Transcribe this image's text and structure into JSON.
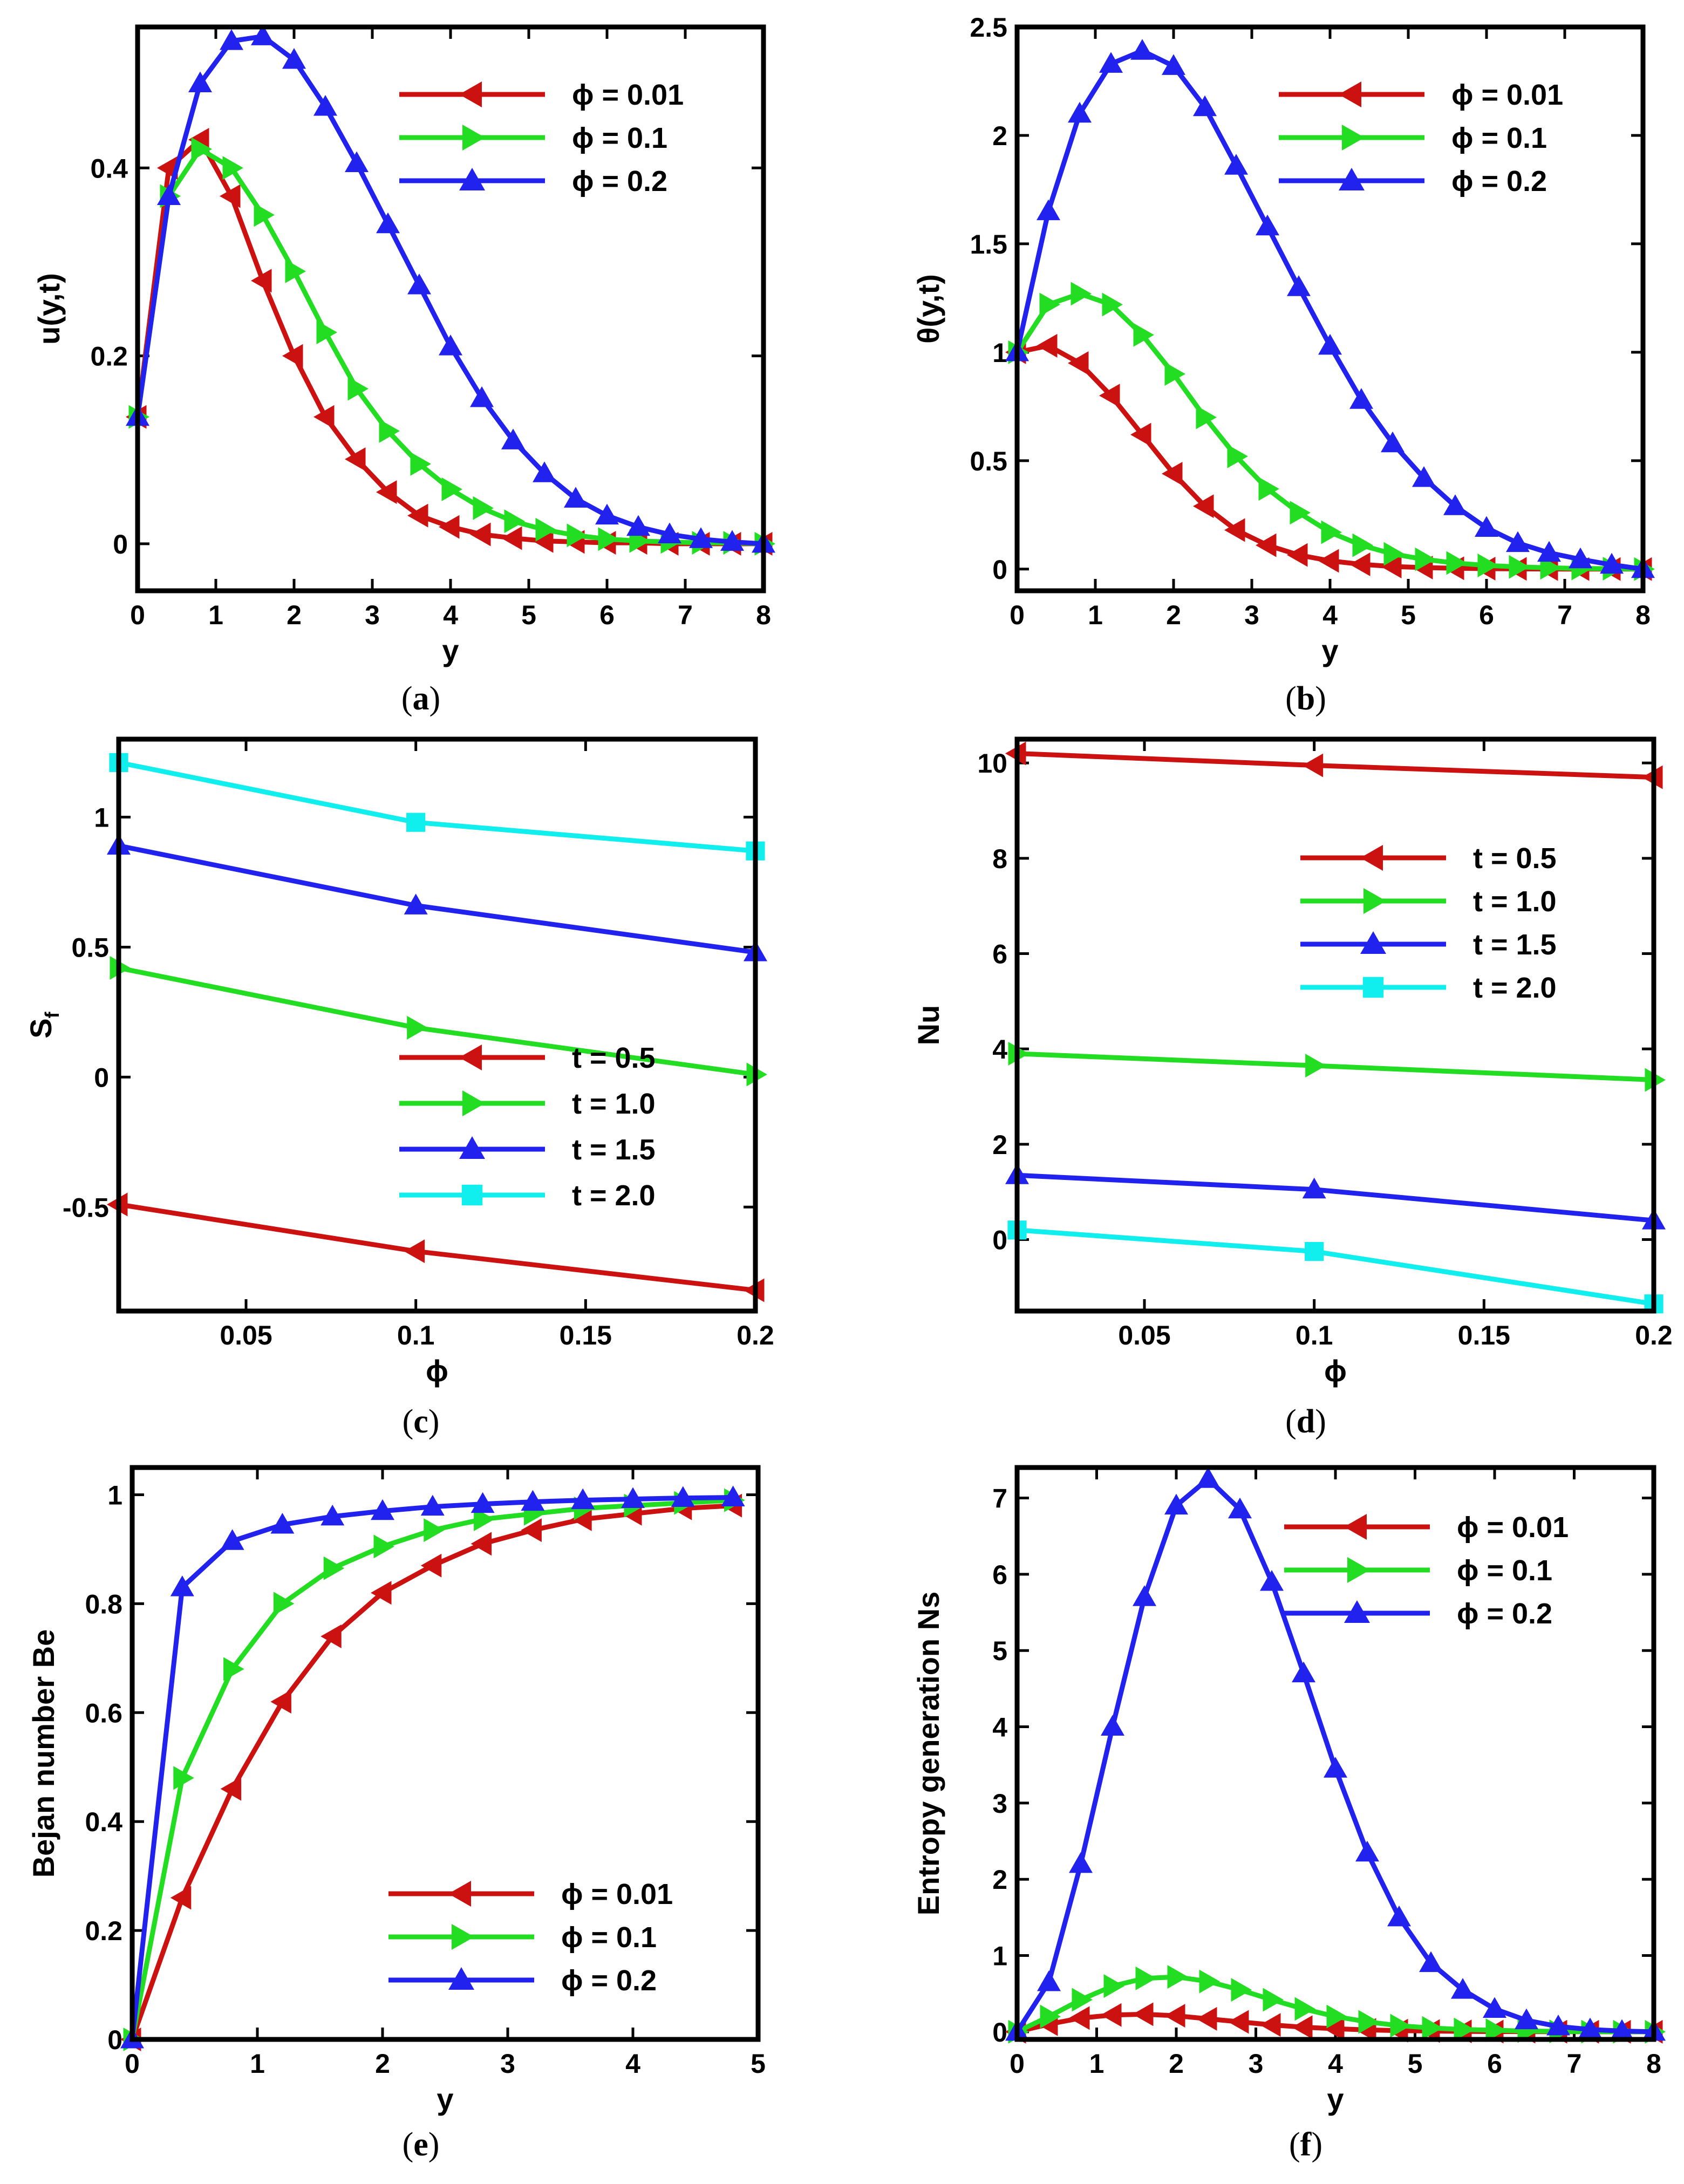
{
  "chart_data": [
    {
      "id": "a",
      "type": "line",
      "panel_label": "a",
      "xlabel": "y",
      "ylabel": "u(y,t)",
      "xlim": [
        0,
        8
      ],
      "ylim": [
        -0.05,
        0.55
      ],
      "xticks": [
        0,
        1,
        2,
        3,
        4,
        5,
        6,
        7,
        8
      ],
      "xtick_labels": [
        "0",
        "1",
        "2",
        "3",
        "4",
        "5",
        "6",
        "7",
        "8"
      ],
      "yticks": [
        0,
        0.2,
        0.4
      ],
      "ytick_labels": [
        "0",
        "0.2",
        "0.4"
      ],
      "legend": "top-right",
      "series": [
        {
          "name": "ϕ = 0.01",
          "color": "#cc1111",
          "marker": "tri-left",
          "x": [
            0,
            0.4,
            0.8,
            1.2,
            1.6,
            2.0,
            2.4,
            2.8,
            3.2,
            3.6,
            4.0,
            4.4,
            4.8,
            5.2,
            5.6,
            6.0,
            6.4,
            6.8,
            7.2,
            7.6,
            8.0
          ],
          "y": [
            0.135,
            0.4,
            0.43,
            0.37,
            0.28,
            0.2,
            0.135,
            0.09,
            0.055,
            0.03,
            0.018,
            0.01,
            0.006,
            0.003,
            0.002,
            0.001,
            0.001,
            0,
            0,
            0,
            0
          ]
        },
        {
          "name": "ϕ = 0.1",
          "color": "#22dd22",
          "marker": "tri-right",
          "x": [
            0,
            0.4,
            0.8,
            1.2,
            1.6,
            2.0,
            2.4,
            2.8,
            3.2,
            3.6,
            4.0,
            4.4,
            4.8,
            5.2,
            5.6,
            6.0,
            6.4,
            6.8,
            7.2,
            7.6,
            8.0
          ],
          "y": [
            0.135,
            0.37,
            0.42,
            0.4,
            0.35,
            0.29,
            0.225,
            0.165,
            0.12,
            0.085,
            0.058,
            0.038,
            0.024,
            0.015,
            0.009,
            0.005,
            0.003,
            0.002,
            0.001,
            0.001,
            0
          ]
        },
        {
          "name": "ϕ = 0.2",
          "color": "#2222ee",
          "marker": "tri-up",
          "x": [
            0,
            0.4,
            0.8,
            1.2,
            1.6,
            2.0,
            2.4,
            2.8,
            3.2,
            3.6,
            4.0,
            4.4,
            4.8,
            5.2,
            5.6,
            6.0,
            6.4,
            6.8,
            7.2,
            7.6,
            8.0
          ],
          "y": [
            0.135,
            0.37,
            0.49,
            0.535,
            0.54,
            0.515,
            0.465,
            0.405,
            0.34,
            0.275,
            0.21,
            0.155,
            0.11,
            0.075,
            0.048,
            0.03,
            0.018,
            0.01,
            0.005,
            0.002,
            0
          ]
        }
      ]
    },
    {
      "id": "b",
      "type": "line",
      "panel_label": "b",
      "xlabel": "y",
      "ylabel": "θ(y,t)",
      "xlim": [
        0,
        8
      ],
      "ylim": [
        -0.1,
        2.5
      ],
      "xticks": [
        0,
        1,
        2,
        3,
        4,
        5,
        6,
        7,
        8
      ],
      "xtick_labels": [
        "0",
        "1",
        "2",
        "3",
        "4",
        "5",
        "6",
        "7",
        "8"
      ],
      "yticks": [
        0,
        0.5,
        1,
        1.5,
        2,
        2.5
      ],
      "ytick_labels": [
        "0",
        "0.5",
        "1",
        "1.5",
        "2",
        "2.5"
      ],
      "legend": "top-right",
      "series": [
        {
          "name": "ϕ = 0.01",
          "color": "#cc1111",
          "marker": "tri-left",
          "x": [
            0,
            0.4,
            0.8,
            1.2,
            1.6,
            2.0,
            2.4,
            2.8,
            3.2,
            3.6,
            4.0,
            4.4,
            4.8,
            5.2,
            5.6,
            6.0,
            6.4,
            6.8,
            7.2,
            7.6,
            8.0
          ],
          "y": [
            1.0,
            1.03,
            0.95,
            0.8,
            0.62,
            0.44,
            0.29,
            0.18,
            0.11,
            0.065,
            0.038,
            0.022,
            0.012,
            0.007,
            0.004,
            0.002,
            0.001,
            0,
            0,
            0,
            0
          ]
        },
        {
          "name": "ϕ = 0.1",
          "color": "#22dd22",
          "marker": "tri-right",
          "x": [
            0,
            0.4,
            0.8,
            1.2,
            1.6,
            2.0,
            2.4,
            2.8,
            3.2,
            3.6,
            4.0,
            4.4,
            4.8,
            5.2,
            5.6,
            6.0,
            6.4,
            6.8,
            7.2,
            7.6,
            8.0
          ],
          "y": [
            1.0,
            1.22,
            1.27,
            1.22,
            1.08,
            0.9,
            0.7,
            0.52,
            0.37,
            0.26,
            0.17,
            0.11,
            0.07,
            0.045,
            0.028,
            0.017,
            0.01,
            0.006,
            0.003,
            0.002,
            0
          ]
        },
        {
          "name": "ϕ = 0.2",
          "color": "#2222ee",
          "marker": "tri-up",
          "x": [
            0,
            0.4,
            0.8,
            1.2,
            1.6,
            2.0,
            2.4,
            2.8,
            3.2,
            3.6,
            4.0,
            4.4,
            4.8,
            5.2,
            5.6,
            6.0,
            6.4,
            6.8,
            7.2,
            7.6,
            8.0
          ],
          "y": [
            1.0,
            1.65,
            2.1,
            2.33,
            2.39,
            2.32,
            2.13,
            1.86,
            1.58,
            1.3,
            1.03,
            0.78,
            0.58,
            0.42,
            0.29,
            0.19,
            0.12,
            0.075,
            0.045,
            0.02,
            0
          ]
        }
      ]
    },
    {
      "id": "c",
      "type": "line",
      "panel_label": "c",
      "xlabel": "ϕ",
      "ylabel": "S_f",
      "xlim": [
        0.0125,
        0.2
      ],
      "ylim": [
        -0.9,
        1.3
      ],
      "xticks": [
        0.05,
        0.1,
        0.15,
        0.2
      ],
      "xtick_labels": [
        "0.05",
        "0.1",
        "0.15",
        "0.2"
      ],
      "yticks": [
        -0.5,
        0,
        0.5,
        1
      ],
      "ytick_labels": [
        "-0.5",
        "0",
        "0.5",
        "1"
      ],
      "legend": "bottom-right",
      "series": [
        {
          "name": "t = 0.5",
          "color": "#cc1111",
          "marker": "tri-left",
          "x": [
            0.0125,
            0.1,
            0.2
          ],
          "y": [
            -0.49,
            -0.67,
            -0.82
          ]
        },
        {
          "name": "t = 1.0",
          "color": "#22dd22",
          "marker": "tri-right",
          "x": [
            0.0125,
            0.1,
            0.2
          ],
          "y": [
            0.42,
            0.19,
            0.01
          ]
        },
        {
          "name": "t = 1.5",
          "color": "#2222ee",
          "marker": "tri-up",
          "x": [
            0.0125,
            0.1,
            0.2
          ],
          "y": [
            0.89,
            0.66,
            0.48
          ]
        },
        {
          "name": "t = 2.0",
          "color": "#11eeee",
          "marker": "square",
          "x": [
            0.0125,
            0.1,
            0.2
          ],
          "y": [
            1.21,
            0.98,
            0.87
          ]
        }
      ]
    },
    {
      "id": "d",
      "type": "line",
      "panel_label": "d",
      "xlabel": "ϕ",
      "ylabel": "Nu",
      "xlim": [
        0.0125,
        0.2
      ],
      "ylim": [
        -1.5,
        10.5
      ],
      "xticks": [
        0.05,
        0.1,
        0.15,
        0.2
      ],
      "xtick_labels": [
        "0.05",
        "0.1",
        "0.15",
        "0.2"
      ],
      "yticks": [
        0,
        2,
        4,
        6,
        8,
        10
      ],
      "ytick_labels": [
        "0",
        "2",
        "4",
        "6",
        "8",
        "10"
      ],
      "legend": "top-right",
      "series": [
        {
          "name": "t = 0.5",
          "color": "#cc1111",
          "marker": "tri-left",
          "x": [
            0.0125,
            0.1,
            0.2
          ],
          "y": [
            10.2,
            9.95,
            9.7
          ]
        },
        {
          "name": "t = 1.0",
          "color": "#22dd22",
          "marker": "tri-right",
          "x": [
            0.0125,
            0.1,
            0.2
          ],
          "y": [
            3.9,
            3.65,
            3.35
          ]
        },
        {
          "name": "t = 1.5",
          "color": "#2222ee",
          "marker": "tri-up",
          "x": [
            0.0125,
            0.1,
            0.2
          ],
          "y": [
            1.35,
            1.05,
            0.4
          ]
        },
        {
          "name": "t = 2.0",
          "color": "#11eeee",
          "marker": "square",
          "x": [
            0.0125,
            0.1,
            0.2
          ],
          "y": [
            0.2,
            -0.25,
            -1.35
          ]
        }
      ]
    },
    {
      "id": "e",
      "type": "line",
      "panel_label": "e",
      "xlabel": "y",
      "ylabel": "Bejan number Be",
      "xlim": [
        0,
        5
      ],
      "ylim": [
        0,
        1.05
      ],
      "xticks": [
        0,
        1,
        2,
        3,
        4,
        5
      ],
      "xtick_labels": [
        "0",
        "1",
        "2",
        "3",
        "4",
        "5"
      ],
      "yticks": [
        0,
        0.2,
        0.4,
        0.6,
        0.8,
        1
      ],
      "ytick_labels": [
        "0",
        "0.2",
        "0.4",
        "0.6",
        "0.8",
        "1"
      ],
      "legend": "bottom-right",
      "series": [
        {
          "name": "ϕ = 0.01",
          "color": "#cc1111",
          "marker": "tri-left",
          "x": [
            0,
            0.4,
            0.8,
            1.2,
            1.6,
            2.0,
            2.4,
            2.8,
            3.2,
            3.6,
            4.0,
            4.4,
            4.8
          ],
          "y": [
            0.0,
            0.26,
            0.46,
            0.62,
            0.74,
            0.82,
            0.87,
            0.91,
            0.935,
            0.955,
            0.965,
            0.975,
            0.98
          ]
        },
        {
          "name": "ϕ = 0.1",
          "color": "#22dd22",
          "marker": "tri-right",
          "x": [
            0,
            0.4,
            0.8,
            1.2,
            1.6,
            2.0,
            2.4,
            2.8,
            3.2,
            3.6,
            4.0,
            4.4,
            4.8
          ],
          "y": [
            0.0,
            0.48,
            0.68,
            0.8,
            0.865,
            0.905,
            0.935,
            0.955,
            0.965,
            0.975,
            0.98,
            0.985,
            0.99
          ]
        },
        {
          "name": "ϕ = 0.2",
          "color": "#2222ee",
          "marker": "tri-up",
          "x": [
            0,
            0.4,
            0.8,
            1.2,
            1.6,
            2.0,
            2.4,
            2.8,
            3.2,
            3.6,
            4.0,
            4.4,
            4.8
          ],
          "y": [
            0.0,
            0.83,
            0.915,
            0.945,
            0.96,
            0.97,
            0.978,
            0.983,
            0.987,
            0.99,
            0.992,
            0.994,
            0.995
          ]
        }
      ]
    },
    {
      "id": "f",
      "type": "line",
      "panel_label": "f",
      "xlabel": "y",
      "ylabel": "Entropy generation Ns",
      "xlim": [
        0,
        8
      ],
      "ylim": [
        -0.1,
        7.4
      ],
      "xticks": [
        0,
        1,
        2,
        3,
        4,
        5,
        6,
        7,
        8
      ],
      "xtick_labels": [
        "0",
        "1",
        "2",
        "3",
        "4",
        "5",
        "6",
        "7",
        "8"
      ],
      "yticks": [
        0,
        1,
        2,
        3,
        4,
        5,
        6,
        7
      ],
      "ytick_labels": [
        "0",
        "1",
        "2",
        "3",
        "4",
        "5",
        "6",
        "7"
      ],
      "legend": "top-right",
      "series": [
        {
          "name": "ϕ = 0.01",
          "color": "#cc1111",
          "marker": "tri-left",
          "x": [
            0,
            0.4,
            0.8,
            1.2,
            1.6,
            2.0,
            2.4,
            2.8,
            3.2,
            3.6,
            4.0,
            4.4,
            4.8,
            5.2,
            5.6,
            6.0,
            6.4,
            6.8,
            7.2,
            7.6,
            8.0
          ],
          "y": [
            0,
            0.1,
            0.18,
            0.22,
            0.23,
            0.21,
            0.17,
            0.13,
            0.09,
            0.06,
            0.04,
            0.025,
            0.015,
            0.01,
            0.005,
            0.003,
            0.002,
            0.001,
            0,
            0,
            0
          ]
        },
        {
          "name": "ϕ = 0.1",
          "color": "#22dd22",
          "marker": "tri-right",
          "x": [
            0,
            0.4,
            0.8,
            1.2,
            1.6,
            2.0,
            2.4,
            2.8,
            3.2,
            3.6,
            4.0,
            4.4,
            4.8,
            5.2,
            5.6,
            6.0,
            6.4,
            6.8,
            7.2,
            7.6,
            8.0
          ],
          "y": [
            0,
            0.2,
            0.42,
            0.6,
            0.7,
            0.72,
            0.66,
            0.55,
            0.42,
            0.3,
            0.2,
            0.13,
            0.08,
            0.05,
            0.03,
            0.02,
            0.01,
            0.005,
            0.002,
            0.001,
            0
          ]
        },
        {
          "name": "ϕ = 0.2",
          "color": "#2222ee",
          "marker": "tri-up",
          "x": [
            0,
            0.4,
            0.8,
            1.2,
            1.6,
            2.0,
            2.4,
            2.8,
            3.2,
            3.6,
            4.0,
            4.4,
            4.8,
            5.2,
            5.6,
            6.0,
            6.4,
            6.8,
            7.2,
            7.6,
            8.0
          ],
          "y": [
            0,
            0.65,
            2.2,
            4.0,
            5.7,
            6.9,
            7.25,
            6.85,
            5.9,
            4.7,
            3.45,
            2.35,
            1.5,
            0.9,
            0.55,
            0.3,
            0.15,
            0.07,
            0.03,
            0.01,
            0
          ]
        }
      ]
    }
  ]
}
